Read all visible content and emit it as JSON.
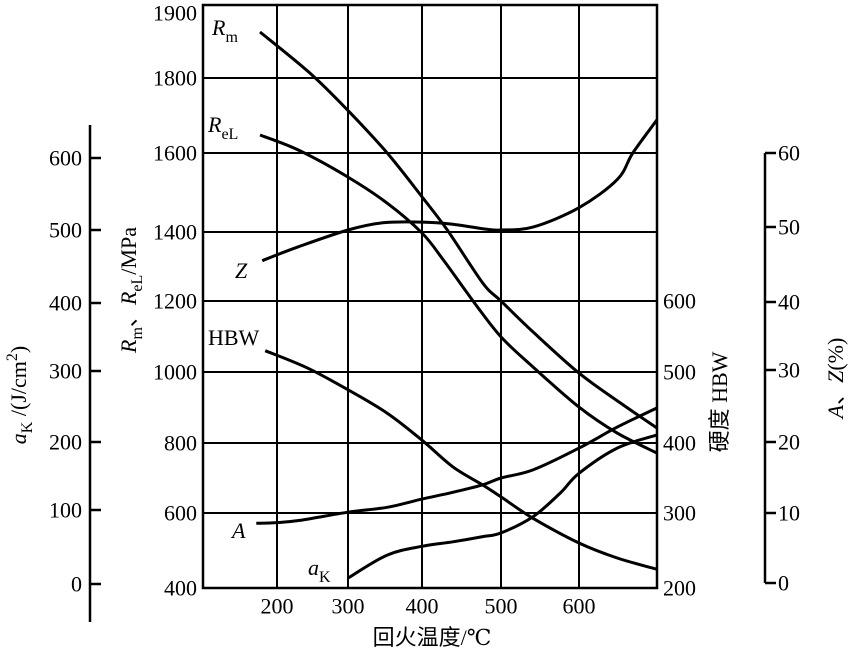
{
  "chart_data": {
    "type": "line",
    "title": "",
    "xlabel": "回火温度/℃",
    "xlim": [
      100,
      700
    ],
    "x_ticks": [
      200,
      300,
      400,
      500,
      600
    ],
    "grid": true,
    "axes": {
      "strength": {
        "label": "Rm、ReL/MPa",
        "label_parts": [
          {
            "t": "R",
            "it": true
          },
          {
            "t": "m",
            "sub": true
          },
          {
            "t": "、"
          },
          {
            "t": "R",
            "it": true
          },
          {
            "t": "eL",
            "sub": true
          },
          {
            "t": "/MPa"
          }
        ],
        "ticks": [
          1900,
          1800,
          1600,
          1400,
          1200,
          1000,
          800,
          600,
          400
        ],
        "ylim": [
          400,
          1900
        ],
        "side": "left-inner"
      },
      "impact": {
        "label": "aK /(J/cm2)",
        "label_parts": [
          {
            "t": "a",
            "it": true
          },
          {
            "t": "K",
            "sub": true
          },
          {
            "t": " /(J/cm"
          },
          {
            "t": "2",
            "sup": true
          },
          {
            "t": ")"
          }
        ],
        "ticks": [
          600,
          500,
          400,
          300,
          200,
          100,
          0
        ],
        "ylim": [
          0,
          600
        ],
        "side": "left-outer"
      },
      "hardness": {
        "label": "硬度  HBW",
        "ticks": [
          600,
          500,
          400,
          300,
          200
        ],
        "ylim": [
          200,
          600
        ],
        "side": "right-inner"
      },
      "ductility": {
        "label": "A、Z(%)",
        "label_parts": [
          {
            "t": "A",
            "it": true
          },
          {
            "t": "、"
          },
          {
            "t": "Z",
            "it": true
          },
          {
            "t": "(%)"
          }
        ],
        "ticks": [
          60,
          50,
          40,
          30,
          20,
          10,
          0
        ],
        "ylim": [
          0,
          60
        ],
        "side": "right-outer"
      }
    },
    "series": [
      {
        "name": "Rm",
        "label_main": "R",
        "label_sub": "m",
        "axis": "strength",
        "x": [
          177,
          246,
          302,
          353,
          400,
          432,
          477,
          500,
          541,
          600,
          653,
          700
        ],
        "y": [
          1863,
          1807,
          1709,
          1600,
          1489,
          1405,
          1252,
          1200,
          1113,
          997,
          913,
          842
        ]
      },
      {
        "name": "ReL",
        "label_main": "R",
        "label_sub": "eL",
        "axis": "strength",
        "x": [
          177,
          230,
          300,
          353,
          400,
          427,
          468,
          500,
          541,
          600,
          649,
          700
        ],
        "y": [
          1648,
          1608,
          1539,
          1473,
          1397,
          1319,
          1190,
          1099,
          1014,
          901,
          828,
          771
        ]
      },
      {
        "name": "Z",
        "label_main": "Z",
        "label_sub": "",
        "axis": "ductility",
        "x": [
          180,
          230,
          300,
          347,
          400,
          439,
          482,
          500,
          541,
          600,
          649,
          669,
          700
        ],
        "y": [
          45.8,
          47.7,
          50,
          51,
          51.1,
          50.8,
          50.1,
          50,
          50.4,
          53.1,
          57,
          60.7,
          65.3
        ]
      },
      {
        "name": "HBW",
        "label_main": "HBW",
        "label_sub": "",
        "axis": "hardness",
        "x": [
          184,
          242,
          300,
          353,
          400,
          439,
          477,
          500,
          541,
          600,
          649,
          700
        ],
        "y": [
          530,
          506,
          475,
          442,
          404,
          366,
          340,
          323,
          293,
          260,
          240,
          225
        ]
      },
      {
        "name": "A",
        "label_main": "A",
        "label_sub": "",
        "axis": "ductility",
        "x": [
          172,
          200,
          232,
          300,
          353,
          400,
          439,
          477,
          500,
          541,
          600,
          649,
          700
        ],
        "y": [
          8.2,
          8.3,
          8.6,
          9.7,
          10.4,
          11.6,
          12.6,
          13.7,
          14.7,
          15.9,
          19.1,
          22.1,
          24.8
        ]
      },
      {
        "name": "aK",
        "label_main": "a",
        "label_sub": "K",
        "axis": "impact",
        "x": [
          300,
          353,
          400,
          439,
          477,
          500,
          541,
          576,
          600,
          649,
          700
        ],
        "y": [
          8,
          39,
          51,
          57,
          64,
          69,
          91,
          125,
          154,
          191,
          210
        ]
      }
    ]
  }
}
